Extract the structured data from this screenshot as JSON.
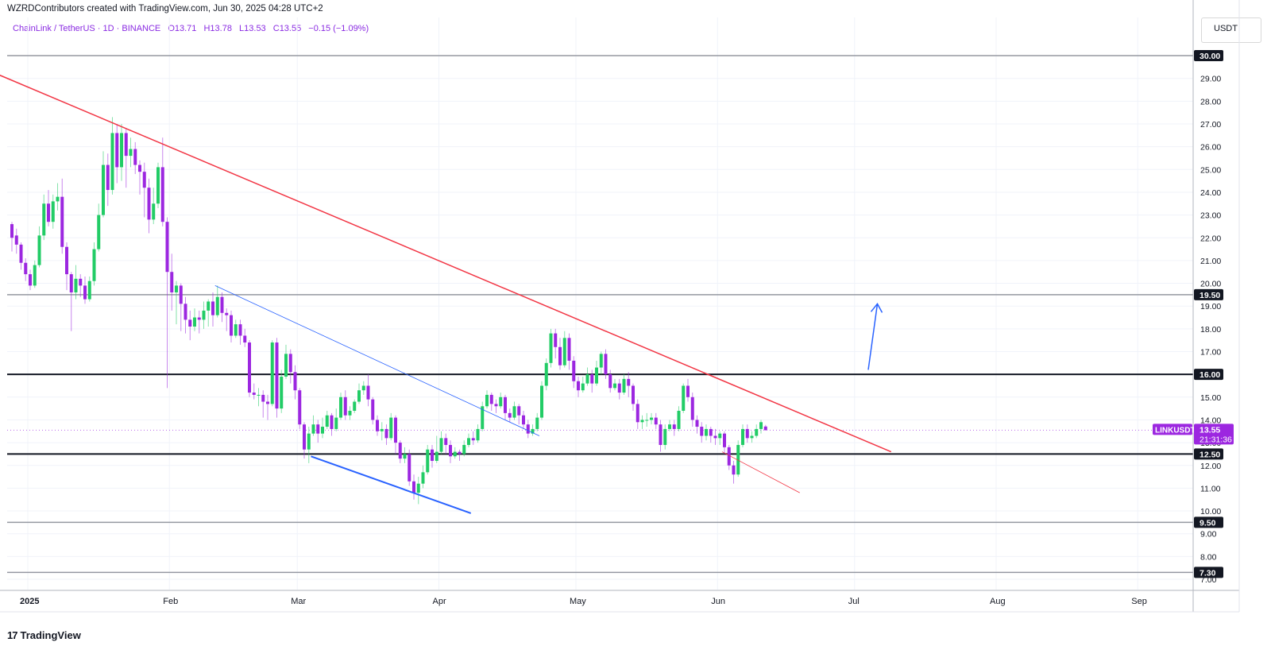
{
  "header": {
    "caption": "WZRDContributors created with TradingView.com, Jun 30, 2025 04:28 UTC+2",
    "symbol": "ChainLink / TetherUS · 1D · BINANCE",
    "open": "O13.71",
    "high": "H13.78",
    "low": "L13.53",
    "close": "C13.55",
    "change": "−0.15 (−1.09%)",
    "currency": "USDT"
  },
  "footer": {
    "logo_text": "TradingView",
    "logo_mark": "17"
  },
  "colors": {
    "up": "#22cc66",
    "down": "#9c27e0",
    "trendline": "#f23645",
    "channel": "#2962ff",
    "level": "#131722",
    "last_price": "#9c27e0"
  },
  "chart_data": {
    "type": "candlestick",
    "timeframe": "1D",
    "x_ticks": [
      "2025",
      "Feb",
      "Mar",
      "Apr",
      "May",
      "Jun",
      "Jul",
      "Aug",
      "Sep"
    ],
    "y_ticks": [
      "7.00",
      "8.00",
      "9.00",
      "10.00",
      "11.00",
      "12.00",
      "13.00",
      "14.00",
      "15.00",
      "16.00",
      "17.00",
      "18.00",
      "19.00",
      "20.00",
      "21.00",
      "22.00",
      "23.00",
      "24.00",
      "25.00",
      "26.00",
      "27.00",
      "28.00",
      "29.00"
    ],
    "ylim": [
      6.8,
      31.5
    ],
    "horizontal_levels": [
      {
        "label": "30.00",
        "value": 30.0,
        "style": "grey"
      },
      {
        "label": "19.50",
        "value": 19.5,
        "style": "grey"
      },
      {
        "label": "16.00",
        "value": 16.0,
        "style": "black"
      },
      {
        "label": "12.50",
        "value": 12.5,
        "style": "black"
      },
      {
        "label": "9.50",
        "value": 9.5,
        "style": "grey"
      },
      {
        "label": "7.30",
        "value": 7.3,
        "style": "grey"
      }
    ],
    "last_price": {
      "symbol": "LINKUSDT",
      "price": "13.55",
      "countdown": "21:31:36",
      "value": 13.55
    },
    "drawings": [
      {
        "name": "downtrend-line",
        "color": "red",
        "from": {
          "day": -4,
          "price": 29.3
        },
        "to": {
          "day": 193,
          "price": 12.6
        }
      },
      {
        "name": "wedge-upper-line",
        "color": "blue",
        "from": {
          "day": 45,
          "price": 19.9
        },
        "to": {
          "day": 116,
          "price": 13.3
        }
      },
      {
        "name": "wedge-lower-line",
        "color": "blue",
        "from": {
          "day": 66,
          "price": 12.4
        },
        "to": {
          "day": 101,
          "price": 9.9
        }
      },
      {
        "name": "june-low-line",
        "color": "red",
        "from": {
          "day": 156,
          "price": 12.6
        },
        "to": {
          "day": 173,
          "price": 10.8
        }
      },
      {
        "name": "target-arrow",
        "color": "blue",
        "from": {
          "day": 188,
          "price": 16.2
        },
        "to": {
          "day": 190,
          "price": 19.1
        }
      }
    ],
    "candles": [
      [
        22.6,
        22.0,
        22.7,
        21.4
      ],
      [
        22.1,
        21.7,
        22.4,
        21.3
      ],
      [
        21.7,
        20.9,
        21.8,
        20.6
      ],
      [
        20.9,
        20.4,
        21.1,
        20.1
      ],
      [
        20.4,
        19.9,
        20.6,
        19.7
      ],
      [
        19.9,
        20.8,
        21.0,
        19.8
      ],
      [
        20.8,
        22.1,
        22.5,
        20.7
      ],
      [
        22.1,
        23.5,
        23.9,
        21.9
      ],
      [
        23.5,
        22.7,
        24.1,
        22.5
      ],
      [
        22.7,
        23.6,
        23.9,
        22.4
      ],
      [
        23.6,
        23.8,
        24.4,
        23.2
      ],
      [
        23.8,
        21.6,
        24.6,
        21.3
      ],
      [
        21.6,
        20.4,
        21.8,
        19.7
      ],
      [
        20.4,
        19.6,
        20.5,
        17.9
      ],
      [
        19.6,
        20.2,
        20.8,
        19.3
      ],
      [
        20.2,
        19.9,
        20.4,
        19.4
      ],
      [
        19.9,
        19.3,
        20.3,
        19.1
      ],
      [
        19.3,
        20.1,
        20.3,
        19.2
      ],
      [
        20.1,
        21.5,
        21.8,
        19.9
      ],
      [
        21.5,
        23.0,
        23.5,
        21.4
      ],
      [
        23.0,
        25.2,
        25.8,
        22.9
      ],
      [
        25.2,
        24.1,
        25.7,
        23.4
      ],
      [
        24.1,
        26.6,
        27.3,
        23.9
      ],
      [
        26.6,
        25.1,
        27.0,
        24.4
      ],
      [
        25.1,
        26.6,
        27.0,
        24.5
      ],
      [
        26.6,
        25.6,
        26.8,
        24.2
      ],
      [
        25.6,
        25.9,
        26.4,
        25.1
      ],
      [
        25.9,
        25.2,
        26.2,
        24.8
      ],
      [
        25.2,
        24.9,
        25.4,
        23.9
      ],
      [
        24.9,
        24.2,
        25.3,
        22.9
      ],
      [
        24.2,
        22.8,
        24.6,
        22.2
      ],
      [
        22.8,
        23.5,
        24.2,
        22.6
      ],
      [
        23.5,
        25.1,
        25.3,
        23.3
      ],
      [
        25.1,
        22.7,
        26.4,
        22.5
      ],
      [
        22.7,
        20.5,
        22.9,
        15.4
      ],
      [
        20.5,
        19.6,
        21.3,
        18.8
      ],
      [
        19.6,
        19.9,
        20.1,
        18.2
      ],
      [
        19.9,
        19.1,
        20.0,
        17.9
      ],
      [
        19.1,
        18.4,
        19.4,
        17.8
      ],
      [
        18.4,
        18.1,
        18.8,
        17.5
      ],
      [
        18.1,
        18.5,
        18.9,
        17.9
      ],
      [
        18.5,
        18.4,
        18.8,
        17.8
      ],
      [
        18.4,
        18.8,
        19.2,
        18.0
      ],
      [
        18.8,
        19.2,
        19.3,
        18.1
      ],
      [
        19.2,
        18.6,
        19.6,
        18.1
      ],
      [
        18.6,
        19.4,
        19.9,
        18.5
      ],
      [
        19.4,
        18.7,
        19.6,
        18.3
      ],
      [
        18.7,
        18.6,
        18.9,
        17.9
      ],
      [
        18.6,
        17.7,
        18.8,
        17.4
      ],
      [
        17.7,
        18.2,
        18.4,
        17.6
      ],
      [
        18.2,
        17.7,
        18.4,
        17.3
      ],
      [
        17.7,
        17.4,
        18.0,
        17.2
      ],
      [
        17.4,
        15.2,
        17.5,
        15.0
      ],
      [
        15.2,
        15.1,
        15.6,
        14.9
      ],
      [
        15.1,
        15.1,
        15.4,
        14.6
      ],
      [
        15.1,
        14.8,
        15.3,
        14.1
      ],
      [
        14.8,
        14.7,
        15.1,
        14.0
      ],
      [
        14.7,
        17.4,
        17.5,
        14.6
      ],
      [
        17.4,
        14.5,
        17.6,
        14.1
      ],
      [
        14.5,
        15.9,
        16.2,
        14.3
      ],
      [
        15.9,
        16.9,
        17.3,
        15.8
      ],
      [
        16.9,
        16.1,
        17.1,
        15.6
      ],
      [
        16.1,
        15.3,
        16.4,
        14.9
      ],
      [
        15.3,
        13.8,
        15.4,
        13.6
      ],
      [
        13.8,
        12.7,
        13.9,
        12.3
      ],
      [
        12.7,
        13.4,
        13.7,
        12.1
      ],
      [
        13.4,
        13.8,
        14.2,
        13.3
      ],
      [
        13.8,
        13.4,
        14.0,
        13.0
      ],
      [
        13.4,
        13.7,
        14.1,
        13.2
      ],
      [
        13.7,
        14.2,
        14.4,
        13.6
      ],
      [
        14.2,
        13.6,
        14.3,
        13.3
      ],
      [
        13.6,
        14.1,
        14.5,
        13.5
      ],
      [
        14.1,
        15.0,
        15.2,
        14.0
      ],
      [
        15.0,
        14.2,
        15.3,
        14.0
      ],
      [
        14.2,
        14.4,
        14.6,
        14.0
      ],
      [
        14.4,
        14.8,
        14.9,
        14.3
      ],
      [
        14.8,
        15.3,
        15.6,
        14.7
      ],
      [
        15.3,
        15.5,
        15.7,
        15.1
      ],
      [
        15.5,
        14.9,
        16.0,
        14.6
      ],
      [
        14.9,
        14.0,
        15.0,
        13.8
      ],
      [
        14.0,
        13.5,
        14.2,
        13.3
      ],
      [
        13.5,
        13.6,
        13.9,
        13.1
      ],
      [
        13.6,
        13.2,
        13.8,
        12.9
      ],
      [
        13.2,
        14.1,
        14.3,
        13.1
      ],
      [
        14.1,
        13.0,
        14.2,
        12.5
      ],
      [
        13.0,
        12.3,
        13.1,
        12.1
      ],
      [
        12.3,
        12.5,
        12.8,
        12.1
      ],
      [
        12.5,
        11.3,
        12.7,
        11.1
      ],
      [
        11.3,
        10.8,
        11.6,
        10.5
      ],
      [
        10.8,
        11.2,
        11.5,
        10.3
      ],
      [
        11.2,
        11.7,
        12.0,
        11.0
      ],
      [
        11.7,
        12.7,
        12.9,
        11.6
      ],
      [
        12.7,
        12.2,
        12.9,
        11.9
      ],
      [
        12.2,
        12.6,
        13.3,
        12.1
      ],
      [
        12.6,
        13.2,
        13.5,
        12.5
      ],
      [
        13.2,
        12.9,
        13.4,
        12.5
      ],
      [
        12.9,
        12.4,
        13.1,
        12.1
      ],
      [
        12.4,
        12.6,
        12.8,
        12.3
      ],
      [
        12.6,
        12.5,
        12.7,
        12.2
      ],
      [
        12.5,
        12.9,
        13.1,
        12.4
      ],
      [
        12.9,
        13.2,
        13.4,
        12.8
      ],
      [
        13.2,
        13.1,
        13.5,
        12.9
      ],
      [
        13.1,
        13.6,
        13.8,
        13.0
      ],
      [
        13.6,
        14.6,
        14.8,
        13.5
      ],
      [
        14.6,
        15.1,
        15.3,
        14.5
      ],
      [
        15.1,
        14.7,
        15.2,
        14.4
      ],
      [
        14.7,
        14.6,
        14.9,
        14.3
      ],
      [
        14.6,
        15.0,
        15.2,
        14.5
      ],
      [
        15.0,
        14.3,
        15.1,
        14.0
      ],
      [
        14.3,
        14.1,
        14.5,
        13.9
      ],
      [
        14.1,
        14.6,
        14.8,
        14.0
      ],
      [
        14.6,
        14.2,
        14.7,
        13.8
      ],
      [
        14.2,
        13.8,
        14.4,
        13.6
      ],
      [
        13.8,
        13.4,
        14.0,
        13.2
      ],
      [
        13.4,
        13.6,
        13.8,
        13.3
      ],
      [
        13.6,
        14.1,
        14.3,
        13.5
      ],
      [
        14.1,
        15.5,
        15.7,
        14.0
      ],
      [
        15.5,
        16.5,
        16.7,
        15.3
      ],
      [
        16.5,
        17.8,
        18.0,
        16.3
      ],
      [
        17.8,
        17.2,
        18.0,
        16.7
      ],
      [
        17.2,
        16.4,
        17.6,
        16.2
      ],
      [
        16.4,
        17.6,
        17.9,
        16.3
      ],
      [
        17.6,
        16.6,
        17.8,
        16.2
      ],
      [
        16.6,
        15.7,
        16.8,
        15.4
      ],
      [
        15.7,
        15.3,
        15.9,
        15.0
      ],
      [
        15.3,
        15.6,
        15.9,
        15.2
      ],
      [
        15.6,
        16.0,
        16.3,
        15.5
      ],
      [
        16.0,
        15.6,
        16.2,
        15.2
      ],
      [
        15.6,
        16.3,
        16.6,
        15.5
      ],
      [
        16.3,
        16.9,
        17.0,
        16.0
      ],
      [
        16.9,
        16.0,
        17.1,
        15.8
      ],
      [
        16.0,
        15.4,
        16.2,
        15.2
      ],
      [
        15.4,
        15.6,
        15.8,
        15.3
      ],
      [
        15.6,
        15.2,
        15.8,
        14.9
      ],
      [
        15.2,
        15.8,
        16.0,
        15.1
      ],
      [
        15.8,
        15.5,
        16.1,
        15.0
      ],
      [
        15.5,
        14.7,
        15.6,
        14.4
      ],
      [
        14.7,
        13.9,
        14.9,
        13.6
      ],
      [
        13.9,
        14.0,
        14.2,
        13.6
      ],
      [
        14.0,
        14.0,
        14.3,
        13.7
      ],
      [
        14.0,
        14.1,
        14.3,
        13.8
      ],
      [
        14.1,
        13.8,
        14.3,
        13.6
      ],
      [
        13.8,
        12.9,
        14.0,
        12.6
      ],
      [
        12.9,
        13.6,
        13.8,
        12.7
      ],
      [
        13.6,
        13.8,
        14.0,
        13.5
      ],
      [
        13.8,
        13.6,
        14.0,
        13.3
      ],
      [
        13.6,
        14.4,
        14.6,
        13.5
      ],
      [
        14.4,
        15.5,
        15.6,
        14.3
      ],
      [
        15.5,
        15.0,
        15.8,
        14.8
      ],
      [
        15.0,
        14.0,
        15.2,
        13.7
      ],
      [
        14.0,
        13.7,
        14.2,
        13.4
      ],
      [
        13.7,
        13.3,
        13.9,
        13.0
      ],
      [
        13.3,
        13.6,
        13.8,
        13.1
      ],
      [
        13.6,
        13.3,
        13.7,
        13.0
      ],
      [
        13.3,
        13.2,
        13.6,
        12.9
      ],
      [
        13.2,
        13.4,
        13.5,
        12.9
      ],
      [
        13.4,
        12.8,
        13.5,
        12.5
      ],
      [
        12.8,
        12.0,
        12.9,
        11.8
      ],
      [
        12.0,
        11.6,
        12.2,
        11.2
      ],
      [
        11.6,
        12.9,
        13.1,
        11.5
      ],
      [
        12.9,
        13.6,
        13.8,
        12.8
      ],
      [
        13.6,
        13.2,
        13.8,
        13.0
      ],
      [
        13.2,
        13.3,
        13.5,
        13.0
      ],
      [
        13.3,
        13.6,
        13.8,
        13.2
      ],
      [
        13.6,
        13.9,
        14.0,
        13.4
      ],
      [
        13.71,
        13.55,
        13.78,
        13.53
      ]
    ]
  }
}
